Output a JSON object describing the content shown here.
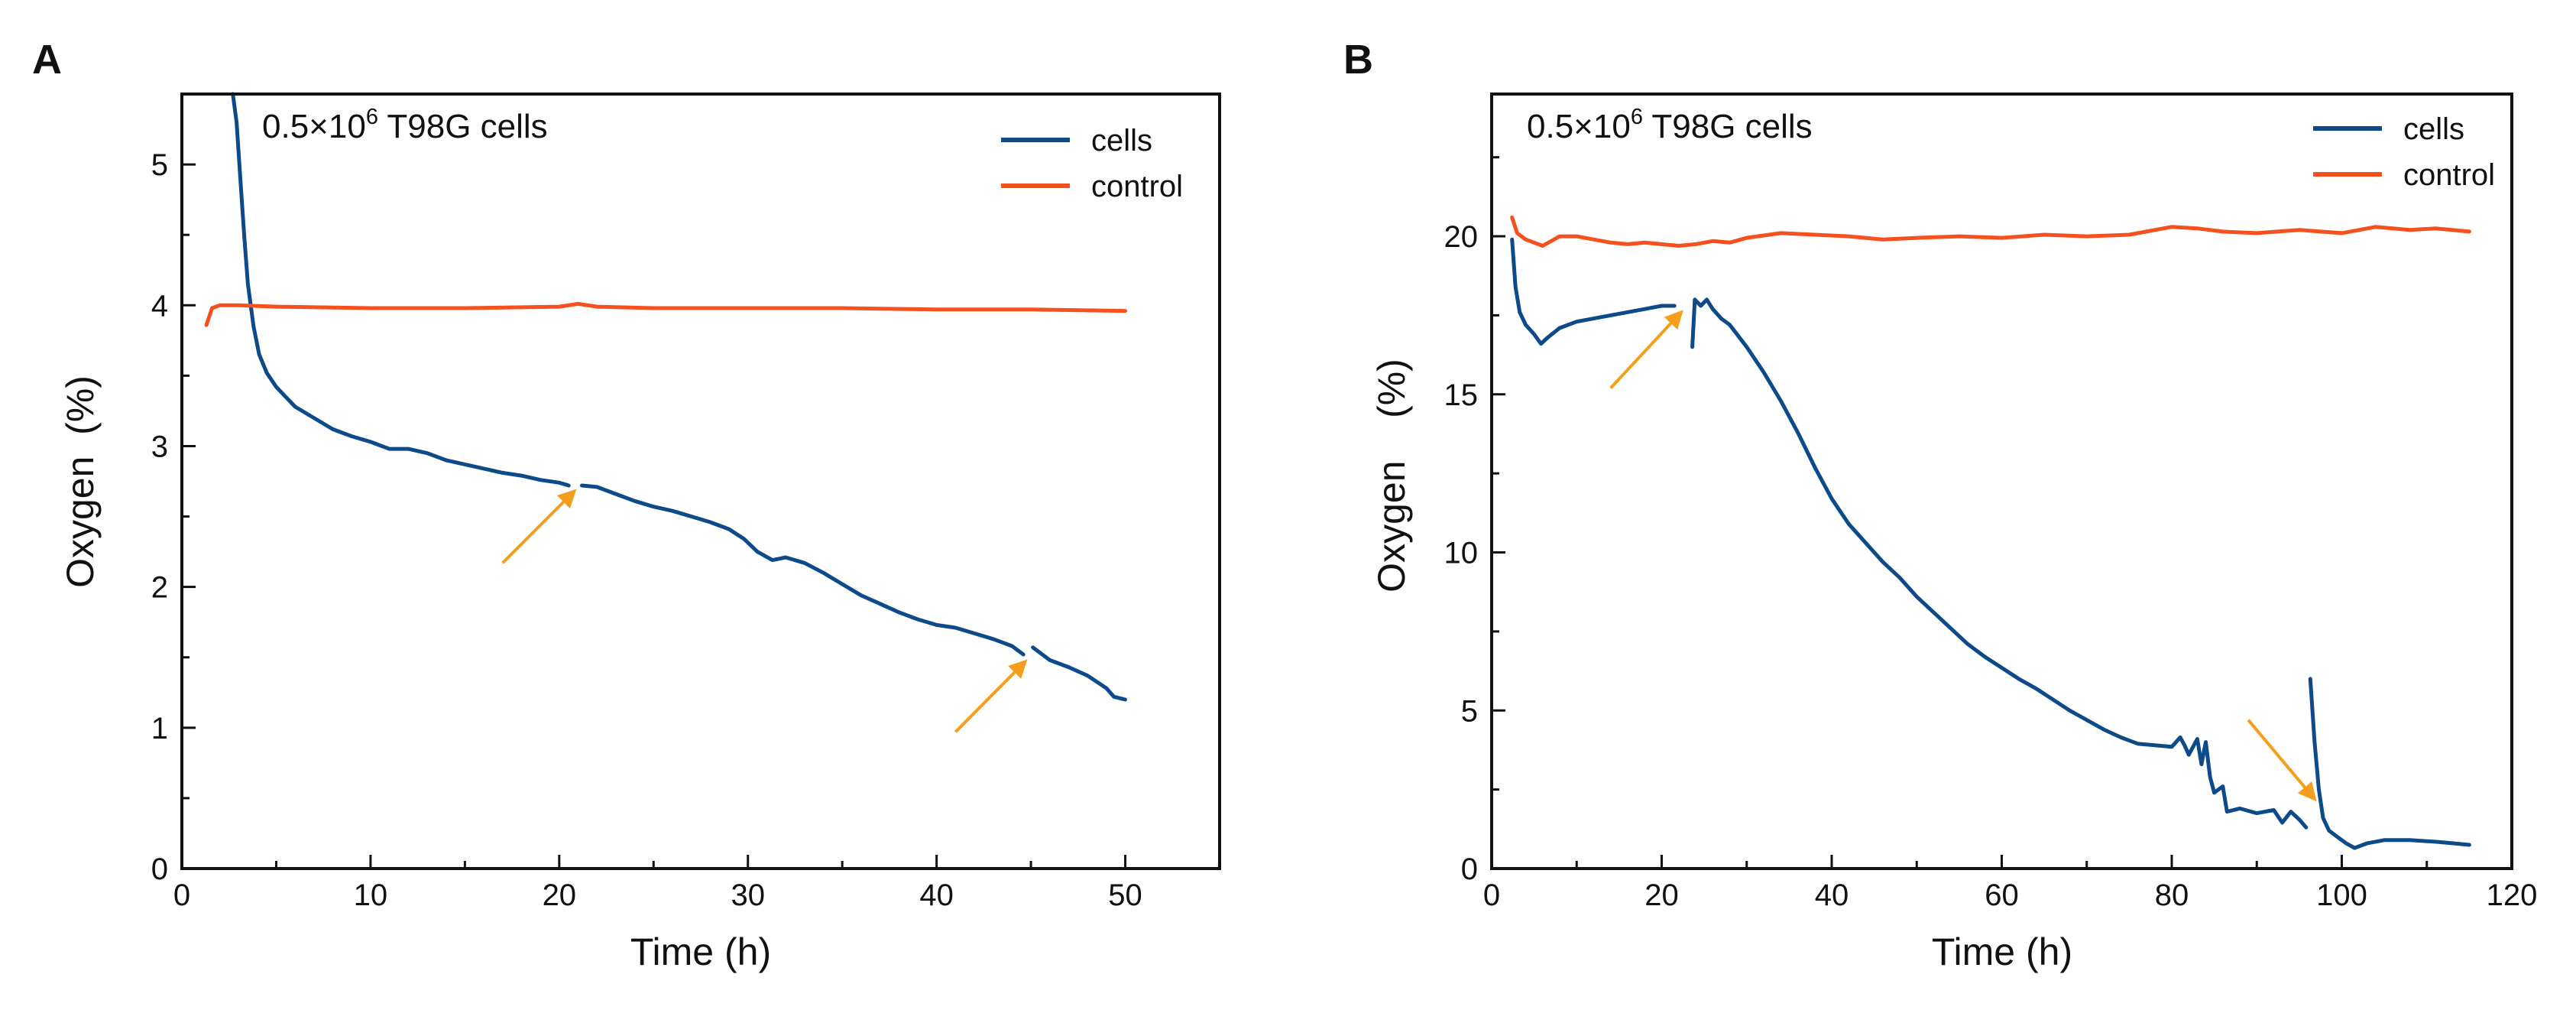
{
  "colors": {
    "cells": "#0d4a8a",
    "control": "#f5501e",
    "arrow": "#f59e1b",
    "axis": "#111111"
  },
  "chart_data": [
    {
      "panel": "A",
      "type": "line",
      "annotation_prefix": "0.5×10",
      "annotation_sup": "6",
      "annotation_suffix": " T98G cells",
      "xlabel": "Time (h)",
      "ylabel": "Oxygen  (%)",
      "xlim": [
        0,
        55
      ],
      "ylim": [
        0,
        5.5
      ],
      "xticks": [
        0,
        10,
        20,
        30,
        40,
        50
      ],
      "yticks": [
        0,
        1,
        2,
        3,
        4,
        5
      ],
      "xminor": [
        5,
        15,
        25,
        35,
        45,
        55
      ],
      "yminor": [
        0.5,
        1.5,
        2.5,
        3.5,
        4.5
      ],
      "legend": [
        "cells",
        "control"
      ],
      "series": [
        {
          "name": "cells",
          "segments": [
            [
              [
                2.7,
                5.5
              ],
              [
                2.9,
                5.3
              ],
              [
                3.1,
                4.9
              ],
              [
                3.3,
                4.5
              ],
              [
                3.5,
                4.15
              ],
              [
                3.8,
                3.85
              ],
              [
                4.1,
                3.65
              ],
              [
                4.5,
                3.52
              ],
              [
                5,
                3.42
              ],
              [
                6,
                3.28
              ],
              [
                7,
                3.2
              ],
              [
                8,
                3.12
              ],
              [
                9,
                3.07
              ],
              [
                10,
                3.03
              ],
              [
                11,
                2.98
              ],
              [
                12,
                2.98
              ],
              [
                13,
                2.95
              ],
              [
                14,
                2.9
              ],
              [
                15,
                2.87
              ],
              [
                16,
                2.84
              ],
              [
                17,
                2.81
              ],
              [
                18,
                2.79
              ],
              [
                19,
                2.76
              ],
              [
                20,
                2.74
              ],
              [
                20.5,
                2.72
              ]
            ],
            [
              [
                21.2,
                2.72
              ],
              [
                22,
                2.71
              ],
              [
                23,
                2.66
              ],
              [
                24,
                2.61
              ],
              [
                25,
                2.57
              ],
              [
                26,
                2.54
              ],
              [
                27,
                2.5
              ],
              [
                28,
                2.46
              ],
              [
                29,
                2.41
              ],
              [
                29.8,
                2.34
              ],
              [
                30.5,
                2.25
              ],
              [
                31.3,
                2.19
              ],
              [
                32,
                2.21
              ],
              [
                33,
                2.17
              ],
              [
                34,
                2.1
              ],
              [
                35,
                2.02
              ],
              [
                36,
                1.94
              ],
              [
                37,
                1.88
              ],
              [
                38,
                1.82
              ],
              [
                39,
                1.77
              ],
              [
                40,
                1.73
              ],
              [
                41,
                1.71
              ],
              [
                42,
                1.67
              ],
              [
                43,
                1.63
              ],
              [
                44,
                1.58
              ],
              [
                44.6,
                1.52
              ]
            ],
            [
              [
                45.1,
                1.57
              ],
              [
                46,
                1.48
              ],
              [
                47,
                1.43
              ],
              [
                48,
                1.37
              ],
              [
                49,
                1.28
              ],
              [
                49.4,
                1.22
              ],
              [
                50,
                1.2
              ]
            ]
          ]
        },
        {
          "name": "control",
          "segments": [
            [
              [
                1.3,
                3.86
              ],
              [
                1.6,
                3.98
              ],
              [
                2,
                4.0
              ],
              [
                3,
                4.0
              ],
              [
                5,
                3.99
              ],
              [
                10,
                3.98
              ],
              [
                15,
                3.98
              ],
              [
                20,
                3.99
              ],
              [
                21,
                4.01
              ],
              [
                22,
                3.99
              ],
              [
                25,
                3.98
              ],
              [
                30,
                3.98
              ],
              [
                35,
                3.98
              ],
              [
                40,
                3.97
              ],
              [
                45,
                3.97
              ],
              [
                50,
                3.96
              ]
            ]
          ]
        }
      ],
      "arrows": [
        {
          "from": [
            17,
            2.17
          ],
          "to": [
            20.8,
            2.68
          ]
        },
        {
          "from": [
            41,
            0.97
          ],
          "to": [
            44.7,
            1.47
          ]
        }
      ]
    },
    {
      "panel": "B",
      "type": "line",
      "annotation_prefix": "0.5×10",
      "annotation_sup": "6",
      "annotation_suffix": " T98G cells",
      "xlabel": "Time (h)",
      "ylabel": "Oxygen    (%)",
      "xlim": [
        0,
        120
      ],
      "ylim": [
        0,
        24.5
      ],
      "xticks": [
        0,
        20,
        40,
        60,
        80,
        100,
        120
      ],
      "yticks": [
        0,
        5,
        10,
        15,
        20
      ],
      "xminor": [
        10,
        30,
        50,
        70,
        90,
        110
      ],
      "yminor": [
        2.5,
        7.5,
        12.5,
        17.5,
        22.5
      ],
      "legend": [
        "cells",
        "control"
      ],
      "series": [
        {
          "name": "cells",
          "segments": [
            [
              [
                2.4,
                19.9
              ],
              [
                2.8,
                18.4
              ],
              [
                3.3,
                17.6
              ],
              [
                4,
                17.2
              ],
              [
                5,
                16.9
              ],
              [
                5.8,
                16.6
              ],
              [
                6.6,
                16.8
              ],
              [
                8,
                17.1
              ],
              [
                10,
                17.3
              ],
              [
                12,
                17.4
              ],
              [
                14,
                17.5
              ],
              [
                16,
                17.6
              ],
              [
                18,
                17.7
              ],
              [
                20,
                17.8
              ],
              [
                21.5,
                17.8
              ]
            ],
            [
              [
                23.6,
                16.5
              ],
              [
                23.9,
                18.0
              ],
              [
                24.6,
                17.8
              ],
              [
                25.3,
                18.0
              ],
              [
                26,
                17.7
              ],
              [
                27,
                17.4
              ],
              [
                28,
                17.2
              ],
              [
                30,
                16.5
              ],
              [
                32,
                15.7
              ],
              [
                34,
                14.8
              ],
              [
                36,
                13.8
              ],
              [
                38,
                12.7
              ],
              [
                40,
                11.7
              ],
              [
                42,
                10.9
              ],
              [
                44,
                10.3
              ],
              [
                46,
                9.7
              ],
              [
                48,
                9.2
              ],
              [
                50,
                8.6
              ],
              [
                52,
                8.1
              ],
              [
                54,
                7.6
              ],
              [
                56,
                7.1
              ],
              [
                58,
                6.7
              ],
              [
                60,
                6.35
              ],
              [
                62,
                6.0
              ],
              [
                64,
                5.7
              ],
              [
                66,
                5.35
              ],
              [
                68,
                5.0
              ],
              [
                70,
                4.7
              ],
              [
                72,
                4.4
              ],
              [
                74,
                4.15
              ],
              [
                76,
                3.95
              ],
              [
                78,
                3.9
              ],
              [
                80,
                3.85
              ],
              [
                81,
                4.15
              ],
              [
                81.5,
                3.9
              ],
              [
                82,
                3.6
              ],
              [
                83,
                4.1
              ],
              [
                83.5,
                3.3
              ],
              [
                84,
                4.0
              ],
              [
                84.5,
                2.9
              ],
              [
                85,
                2.4
              ],
              [
                86,
                2.6
              ],
              [
                86.5,
                1.8
              ],
              [
                88,
                1.9
              ],
              [
                90,
                1.75
              ],
              [
                92,
                1.85
              ],
              [
                93,
                1.45
              ],
              [
                94,
                1.8
              ],
              [
                95,
                1.55
              ],
              [
                95.8,
                1.3
              ]
            ],
            [
              [
                96.3,
                6.0
              ],
              [
                96.8,
                4.0
              ],
              [
                97.3,
                2.5
              ],
              [
                97.8,
                1.6
              ],
              [
                98.5,
                1.2
              ],
              [
                99.5,
                1.0
              ],
              [
                100.5,
                0.8
              ],
              [
                101.5,
                0.65
              ],
              [
                103,
                0.8
              ],
              [
                105,
                0.9
              ],
              [
                108,
                0.9
              ],
              [
                111,
                0.85
              ],
              [
                113,
                0.8
              ],
              [
                115,
                0.75
              ]
            ]
          ]
        },
        {
          "name": "control",
          "segments": [
            [
              [
                2.4,
                20.6
              ],
              [
                3,
                20.1
              ],
              [
                4,
                19.9
              ],
              [
                5,
                19.8
              ],
              [
                6,
                19.7
              ],
              [
                7,
                19.85
              ],
              [
                8,
                20.0
              ],
              [
                10,
                20.0
              ],
              [
                12,
                19.9
              ],
              [
                14,
                19.8
              ],
              [
                16,
                19.75
              ],
              [
                18,
                19.8
              ],
              [
                20,
                19.75
              ],
              [
                22,
                19.7
              ],
              [
                24,
                19.75
              ],
              [
                26,
                19.85
              ],
              [
                28,
                19.8
              ],
              [
                30,
                19.95
              ],
              [
                34,
                20.1
              ],
              [
                38,
                20.05
              ],
              [
                42,
                20.0
              ],
              [
                46,
                19.9
              ],
              [
                50,
                19.95
              ],
              [
                55,
                20.0
              ],
              [
                60,
                19.95
              ],
              [
                65,
                20.05
              ],
              [
                70,
                20.0
              ],
              [
                75,
                20.05
              ],
              [
                78,
                20.2
              ],
              [
                80,
                20.3
              ],
              [
                83,
                20.25
              ],
              [
                86,
                20.15
              ],
              [
                90,
                20.1
              ],
              [
                95,
                20.2
              ],
              [
                100,
                20.1
              ],
              [
                102,
                20.2
              ],
              [
                104,
                20.3
              ],
              [
                108,
                20.2
              ],
              [
                111,
                20.25
              ],
              [
                115,
                20.15
              ]
            ]
          ]
        }
      ],
      "arrows": [
        {
          "from": [
            14,
            15.2
          ],
          "to": [
            22.3,
            17.6
          ]
        },
        {
          "from": [
            89,
            4.7
          ],
          "to": [
            96.8,
            2.2
          ]
        }
      ]
    }
  ]
}
